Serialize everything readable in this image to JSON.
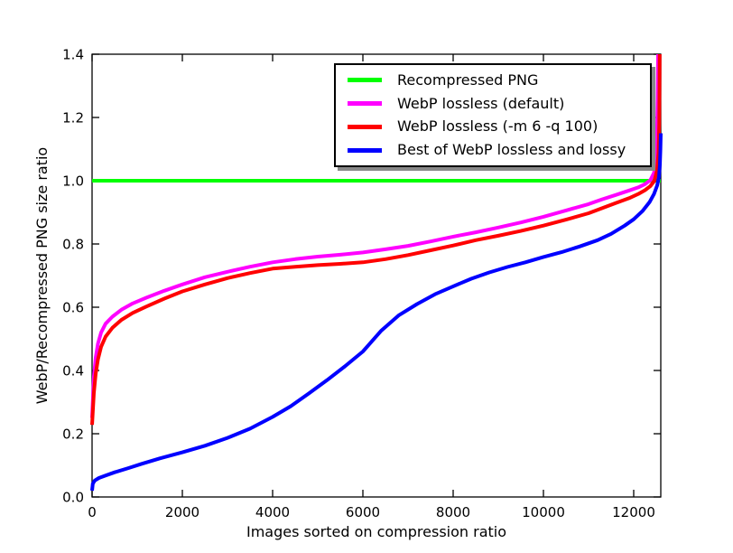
{
  "figure": {
    "background_color": "#ffffff",
    "axes_edge_color": "#000000",
    "text_color": "#000000",
    "legend_shadow_color": "#888888"
  },
  "chart_data": {
    "type": "line",
    "title": "",
    "xlabel": "Images sorted on compression ratio",
    "ylabel": "WebP/Recompressed PNG size ratio",
    "xlim": [
      0,
      12600
    ],
    "ylim": [
      0.0,
      1.4
    ],
    "xtick_values": [
      0,
      2000,
      4000,
      6000,
      8000,
      10000,
      12000
    ],
    "xtick_labels": [
      "0",
      "2000",
      "4000",
      "6000",
      "8000",
      "10000",
      "12000"
    ],
    "ytick_values": [
      0.0,
      0.2,
      0.4,
      0.6,
      0.8,
      1.0,
      1.2,
      1.4
    ],
    "ytick_labels": [
      "0.0",
      "0.2",
      "0.4",
      "0.6",
      "0.8",
      "1.0",
      "1.2",
      "1.4"
    ],
    "grid": false,
    "tick_direction": "in",
    "legend": {
      "position": "upper-right-inside",
      "shadow": true,
      "entries": [
        "Recompressed PNG",
        "WebP lossless (default)",
        "WebP lossless (-m 6 -q 100)",
        "Best of WebP lossless and lossy"
      ]
    },
    "series": [
      {
        "name": "Recompressed PNG",
        "color": "#00ff00",
        "line_width": 4,
        "points": [
          [
            0,
            1.0
          ],
          [
            12600,
            1.0
          ]
        ]
      },
      {
        "name": "WebP lossless (default)",
        "color": "#ff00ff",
        "line_width": 4,
        "points": [
          [
            0,
            0.25
          ],
          [
            40,
            0.38
          ],
          [
            80,
            0.44
          ],
          [
            130,
            0.485
          ],
          [
            200,
            0.52
          ],
          [
            300,
            0.548
          ],
          [
            450,
            0.57
          ],
          [
            650,
            0.592
          ],
          [
            900,
            0.612
          ],
          [
            1200,
            0.63
          ],
          [
            1600,
            0.652
          ],
          [
            2000,
            0.672
          ],
          [
            2500,
            0.695
          ],
          [
            3000,
            0.712
          ],
          [
            3500,
            0.728
          ],
          [
            4000,
            0.742
          ],
          [
            4500,
            0.752
          ],
          [
            5000,
            0.76
          ],
          [
            5500,
            0.766
          ],
          [
            6000,
            0.773
          ],
          [
            6500,
            0.783
          ],
          [
            7000,
            0.794
          ],
          [
            7500,
            0.808
          ],
          [
            8000,
            0.823
          ],
          [
            8500,
            0.837
          ],
          [
            9000,
            0.852
          ],
          [
            9500,
            0.868
          ],
          [
            10000,
            0.886
          ],
          [
            10500,
            0.906
          ],
          [
            11000,
            0.926
          ],
          [
            11300,
            0.941
          ],
          [
            11600,
            0.955
          ],
          [
            11900,
            0.969
          ],
          [
            12100,
            0.979
          ],
          [
            12250,
            0.989
          ],
          [
            12370,
            1.002
          ],
          [
            12450,
            1.025
          ],
          [
            12495,
            1.07
          ],
          [
            12515,
            1.14
          ],
          [
            12530,
            1.26
          ],
          [
            12540,
            1.4
          ]
        ]
      },
      {
        "name": "WebP lossless (-m 6 -q 100)",
        "color": "#ff0000",
        "line_width": 4,
        "points": [
          [
            0,
            0.228
          ],
          [
            40,
            0.33
          ],
          [
            80,
            0.39
          ],
          [
            130,
            0.435
          ],
          [
            200,
            0.475
          ],
          [
            300,
            0.507
          ],
          [
            450,
            0.535
          ],
          [
            650,
            0.56
          ],
          [
            900,
            0.582
          ],
          [
            1200,
            0.602
          ],
          [
            1600,
            0.627
          ],
          [
            2000,
            0.65
          ],
          [
            2500,
            0.672
          ],
          [
            3000,
            0.692
          ],
          [
            3500,
            0.708
          ],
          [
            4000,
            0.722
          ],
          [
            4500,
            0.728
          ],
          [
            5000,
            0.733
          ],
          [
            5500,
            0.737
          ],
          [
            6000,
            0.742
          ],
          [
            6500,
            0.752
          ],
          [
            7000,
            0.765
          ],
          [
            7500,
            0.78
          ],
          [
            8000,
            0.795
          ],
          [
            8500,
            0.812
          ],
          [
            9000,
            0.826
          ],
          [
            9500,
            0.841
          ],
          [
            10000,
            0.858
          ],
          [
            10500,
            0.877
          ],
          [
            11000,
            0.897
          ],
          [
            11300,
            0.913
          ],
          [
            11600,
            0.929
          ],
          [
            11900,
            0.945
          ],
          [
            12100,
            0.958
          ],
          [
            12250,
            0.97
          ],
          [
            12370,
            0.983
          ],
          [
            12460,
            1.0
          ],
          [
            12520,
            1.035
          ],
          [
            12550,
            1.09
          ],
          [
            12565,
            1.18
          ],
          [
            12572,
            1.3
          ],
          [
            12576,
            1.4
          ]
        ]
      },
      {
        "name": "Best of WebP lossless and lossy",
        "color": "#0000ff",
        "line_width": 4,
        "points": [
          [
            0,
            0.02
          ],
          [
            15,
            0.042
          ],
          [
            60,
            0.052
          ],
          [
            150,
            0.06
          ],
          [
            300,
            0.068
          ],
          [
            500,
            0.078
          ],
          [
            800,
            0.091
          ],
          [
            1100,
            0.105
          ],
          [
            1500,
            0.122
          ],
          [
            2000,
            0.141
          ],
          [
            2500,
            0.162
          ],
          [
            3000,
            0.187
          ],
          [
            3500,
            0.216
          ],
          [
            4000,
            0.253
          ],
          [
            4400,
            0.287
          ],
          [
            4800,
            0.327
          ],
          [
            5200,
            0.369
          ],
          [
            5600,
            0.413
          ],
          [
            6000,
            0.46
          ],
          [
            6400,
            0.525
          ],
          [
            6800,
            0.575
          ],
          [
            7200,
            0.61
          ],
          [
            7600,
            0.641
          ],
          [
            8000,
            0.666
          ],
          [
            8400,
            0.69
          ],
          [
            8800,
            0.71
          ],
          [
            9200,
            0.727
          ],
          [
            9600,
            0.742
          ],
          [
            10000,
            0.759
          ],
          [
            10400,
            0.774
          ],
          [
            10800,
            0.792
          ],
          [
            11200,
            0.812
          ],
          [
            11500,
            0.832
          ],
          [
            11800,
            0.858
          ],
          [
            12000,
            0.878
          ],
          [
            12200,
            0.905
          ],
          [
            12350,
            0.932
          ],
          [
            12450,
            0.958
          ],
          [
            12520,
            0.985
          ],
          [
            12560,
            1.012
          ],
          [
            12580,
            1.05
          ],
          [
            12592,
            1.1
          ],
          [
            12600,
            1.15
          ]
        ]
      }
    ]
  }
}
